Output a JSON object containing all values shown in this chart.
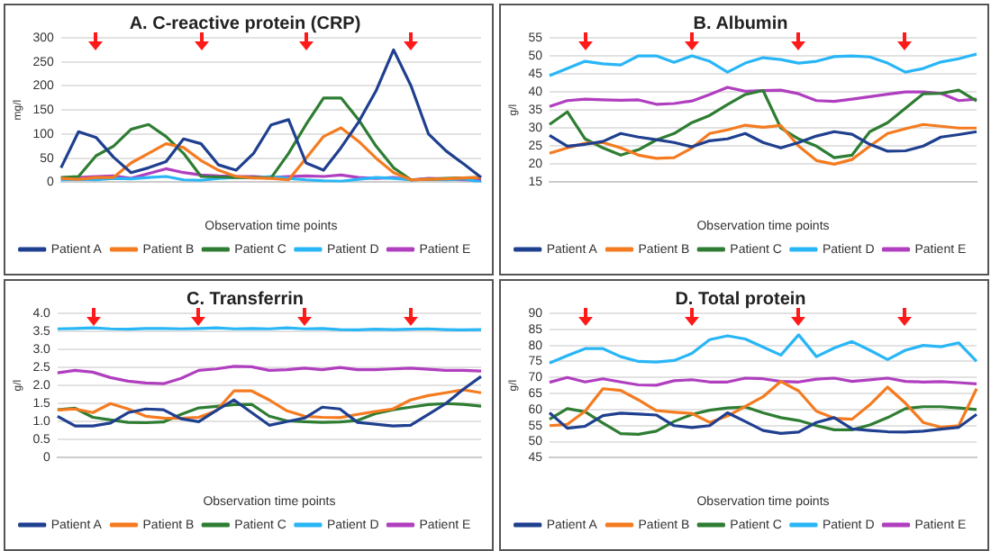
{
  "chart_data": [
    {
      "type": "line",
      "title": "A. C-reactive protein (CRP)",
      "xlabel": "Observation time points",
      "ylabel": "mg/l",
      "categories": [
        null,
        null,
        null,
        null,
        null,
        null,
        null,
        null,
        null,
        null,
        null,
        null,
        null,
        null,
        null,
        null,
        null,
        null,
        null,
        null,
        null,
        null,
        null,
        null,
        null
      ],
      "ylim": [
        0,
        300
      ],
      "yticks": [
        0,
        50,
        100,
        150,
        200,
        250,
        300
      ],
      "grid": "y",
      "legend": "bottom",
      "marker": "none",
      "line_style": "solid",
      "series": [
        {
          "name": "Patient A",
          "color": "#1f3f8f",
          "values": [
            30,
            105,
            93,
            52,
            20,
            30,
            43,
            90,
            80,
            36,
            25,
            60,
            119,
            130,
            40,
            25,
            72,
            125,
            190,
            275,
            200,
            100,
            65,
            38,
            10
          ]
        },
        {
          "name": "Patient B",
          "color": "#f47b20",
          "values": [
            8,
            6,
            10,
            10,
            40,
            60,
            80,
            72,
            45,
            25,
            12,
            9,
            8,
            5,
            50,
            95,
            113,
            85,
            50,
            20,
            5,
            6,
            7,
            9,
            10
          ]
        },
        {
          "name": "Patient C",
          "color": "#2e7d32",
          "values": [
            10,
            12,
            55,
            75,
            110,
            120,
            95,
            60,
            12,
            11,
            10,
            10,
            9,
            60,
            120,
            175,
            175,
            130,
            75,
            30,
            5,
            6,
            8,
            9,
            10
          ]
        },
        {
          "name": "Patient D",
          "color": "#29b6f6",
          "values": [
            5,
            6,
            5,
            8,
            7,
            10,
            12,
            5,
            4,
            8,
            10,
            9,
            12,
            8,
            5,
            3,
            2,
            6,
            10,
            8,
            5,
            6,
            5,
            7,
            0
          ]
        },
        {
          "name": "Patient E",
          "color": "#b03fbf",
          "values": [
            8,
            10,
            12,
            13,
            8,
            18,
            28,
            20,
            15,
            13,
            12,
            12,
            10,
            12,
            13,
            12,
            15,
            10,
            8,
            10,
            5,
            8,
            7,
            5,
            4
          ]
        }
      ]
    },
    {
      "type": "line",
      "title": "B. Albumin",
      "xlabel": "Observation time points",
      "ylabel": "g/l",
      "categories": [
        null,
        null,
        null,
        null,
        null,
        null,
        null,
        null,
        null,
        null,
        null,
        null,
        null,
        null,
        null,
        null,
        null,
        null,
        null,
        null,
        null,
        null,
        null,
        null,
        null
      ],
      "ylim": [
        15,
        55
      ],
      "yticks": [
        15,
        20,
        25,
        30,
        35,
        40,
        45,
        50,
        55
      ],
      "grid": "y",
      "legend": "bottom",
      "marker": "none",
      "line_style": "solid",
      "series": [
        {
          "name": "Patient A",
          "color": "#1f3f8f",
          "values": [
            28,
            25,
            25.5,
            26.3,
            28.5,
            27.5,
            26.8,
            26,
            24.8,
            26.5,
            27,
            28.5,
            26,
            24.5,
            26,
            27.8,
            29,
            28.3,
            25.5,
            23.6,
            23.7,
            25,
            27.5,
            28.2,
            29
          ]
        },
        {
          "name": "Patient B",
          "color": "#f47b20",
          "values": [
            23,
            24.5,
            25.8,
            26,
            24.5,
            22.5,
            21.6,
            21.8,
            24.5,
            28.5,
            29.5,
            30.8,
            30.2,
            30.7,
            25,
            21,
            20,
            21.3,
            25,
            28.5,
            29.8,
            31,
            30.5,
            30,
            30
          ]
        },
        {
          "name": "Patient C",
          "color": "#2e7d32",
          "values": [
            31,
            34.5,
            27,
            24.5,
            22.5,
            24,
            26.7,
            28.5,
            31.5,
            33.5,
            36.5,
            39.3,
            40.4,
            30,
            27,
            25,
            21.8,
            22.5,
            29,
            31.5,
            35.5,
            39.5,
            39.6,
            40.5,
            37.5
          ]
        },
        {
          "name": "Patient D",
          "color": "#29b6f6",
          "values": [
            44.5,
            46.5,
            48.5,
            47.8,
            47.5,
            50,
            50,
            48.2,
            50,
            48.5,
            45.5,
            48,
            49.5,
            49,
            48,
            48.5,
            49.8,
            50,
            49.7,
            48,
            45.5,
            46.5,
            48.3,
            49.2,
            50.5
          ]
        },
        {
          "name": "Patient E",
          "color": "#b03fbf",
          "values": [
            36,
            37.6,
            38,
            37.8,
            37.7,
            37.8,
            36.6,
            36.8,
            37.5,
            39.3,
            41.3,
            40.2,
            40.4,
            40.5,
            39.5,
            37.6,
            37.4,
            38,
            38.7,
            39.4,
            40,
            40,
            39.6,
            37.6,
            38
          ]
        }
      ]
    },
    {
      "type": "line",
      "title": "C. Transferrin",
      "xlabel": "Observation time points",
      "ylabel": "g/l",
      "categories": [
        null,
        null,
        null,
        null,
        null,
        null,
        null,
        null,
        null,
        null,
        null,
        null,
        null,
        null,
        null,
        null,
        null,
        null,
        null,
        null,
        null,
        null,
        null,
        null,
        null
      ],
      "ylim": [
        0,
        4
      ],
      "yticks": [
        0,
        {
          "value": 0.5,
          "label": "0.5"
        },
        {
          "value": 1,
          "label": "1.0"
        },
        {
          "value": 1.5,
          "label": "1.5"
        },
        {
          "value": 2,
          "label": "2.0"
        },
        {
          "value": 2.5,
          "label": "2.5"
        },
        {
          "value": 3,
          "label": "3.0"
        },
        {
          "value": 3.5,
          "label": "3.5"
        },
        {
          "value": 4,
          "label": "4.0"
        }
      ],
      "grid": "y",
      "legend": "bottom",
      "marker": "none",
      "line_style": "solid",
      "series": [
        {
          "name": "Patient A",
          "color": "#1f3f8f",
          "values": [
            1.15,
            0.88,
            0.88,
            0.96,
            1.25,
            1.35,
            1.33,
            1.08,
            1.0,
            1.31,
            1.6,
            1.25,
            0.9,
            1.0,
            1.1,
            1.4,
            1.35,
            0.98,
            0.93,
            0.88,
            0.9,
            1.2,
            1.5,
            1.9,
            2.25
          ]
        },
        {
          "name": "Patient B",
          "color": "#f47b20",
          "values": [
            1.32,
            1.35,
            1.25,
            1.5,
            1.35,
            1.15,
            1.1,
            1.09,
            1.12,
            1.3,
            1.85,
            1.85,
            1.6,
            1.3,
            1.15,
            1.12,
            1.11,
            1.2,
            1.28,
            1.35,
            1.6,
            1.72,
            1.8,
            1.88,
            1.8
          ]
        },
        {
          "name": "Patient C",
          "color": "#2e7d32",
          "values": [
            1.33,
            1.37,
            1.12,
            1.05,
            0.98,
            0.97,
            0.99,
            1.2,
            1.38,
            1.42,
            1.47,
            1.48,
            1.15,
            1.02,
            1.0,
            0.98,
            0.99,
            1.03,
            1.22,
            1.33,
            1.4,
            1.47,
            1.5,
            1.48,
            1.43
          ]
        },
        {
          "name": "Patient D",
          "color": "#29b6f6",
          "values": [
            3.57,
            3.58,
            3.6,
            3.57,
            3.56,
            3.58,
            3.58,
            3.57,
            3.58,
            3.6,
            3.57,
            3.58,
            3.57,
            3.6,
            3.57,
            3.58,
            3.55,
            3.54,
            3.56,
            3.55,
            3.56,
            3.57,
            3.55,
            3.54,
            3.55
          ]
        },
        {
          "name": "Patient E",
          "color": "#b03fbf",
          "values": [
            2.35,
            2.42,
            2.37,
            2.22,
            2.12,
            2.07,
            2.05,
            2.2,
            2.42,
            2.46,
            2.53,
            2.52,
            2.42,
            2.44,
            2.48,
            2.44,
            2.5,
            2.44,
            2.44,
            2.46,
            2.48,
            2.45,
            2.42,
            2.42,
            2.4
          ]
        }
      ]
    },
    {
      "type": "line",
      "title": "D. Total protein",
      "xlabel": "Observation time points",
      "ylabel": "g/l",
      "categories": [
        null,
        null,
        null,
        null,
        null,
        null,
        null,
        null,
        null,
        null,
        null,
        null,
        null,
        null,
        null,
        null,
        null,
        null,
        null,
        null,
        null,
        null,
        null,
        null,
        null
      ],
      "ylim": [
        45,
        90
      ],
      "yticks": [
        45,
        50,
        55,
        60,
        65,
        70,
        75,
        80,
        85,
        90
      ],
      "grid": "y",
      "legend": "bottom",
      "marker": "none",
      "line_style": "solid",
      "series": [
        {
          "name": "Patient A",
          "color": "#1f3f8f",
          "values": [
            59,
            54.2,
            54.8,
            58.1,
            58.9,
            58.6,
            58.3,
            55,
            54.4,
            55,
            59,
            56.3,
            53.5,
            52.6,
            53,
            56,
            57.5,
            54,
            53.5,
            53.1,
            53,
            53.3,
            53.9,
            54.5,
            58.5
          ]
        },
        {
          "name": "Patient B",
          "color": "#f47b20",
          "values": [
            55,
            55.4,
            59.5,
            66.5,
            66,
            63,
            59.7,
            59.2,
            58.8,
            56,
            58,
            61,
            64,
            68.8,
            65.8,
            59.5,
            57.3,
            57,
            61.5,
            67,
            62,
            56,
            54.5,
            55,
            66.5
          ]
        },
        {
          "name": "Patient C",
          "color": "#2e7d32",
          "values": [
            57,
            60.3,
            59.3,
            55.8,
            52.5,
            52.3,
            53.3,
            56.3,
            58.5,
            59.8,
            60.5,
            60.8,
            59,
            57.5,
            56.6,
            55,
            53.7,
            53.7,
            55.2,
            57.5,
            60.3,
            60.9,
            60.9,
            60.5,
            60
          ]
        },
        {
          "name": "Patient D",
          "color": "#29b6f6",
          "values": [
            74.5,
            76.8,
            79,
            79,
            76.5,
            75,
            74.8,
            75.3,
            77.5,
            81.8,
            83,
            82,
            79.5,
            77,
            83.3,
            76.5,
            79.2,
            81.2,
            78.5,
            75.6,
            78.5,
            80,
            79.6,
            80.8,
            75
          ]
        },
        {
          "name": "Patient E",
          "color": "#b03fbf",
          "values": [
            68.5,
            70,
            68.6,
            69.6,
            68.6,
            67.7,
            67.6,
            69,
            69.3,
            68.6,
            68.6,
            69.8,
            69.6,
            68.8,
            68.6,
            69.5,
            69.8,
            68.8,
            69.3,
            69.8,
            68.8,
            68.6,
            68.7,
            68.4,
            68
          ]
        }
      ]
    }
  ]
}
